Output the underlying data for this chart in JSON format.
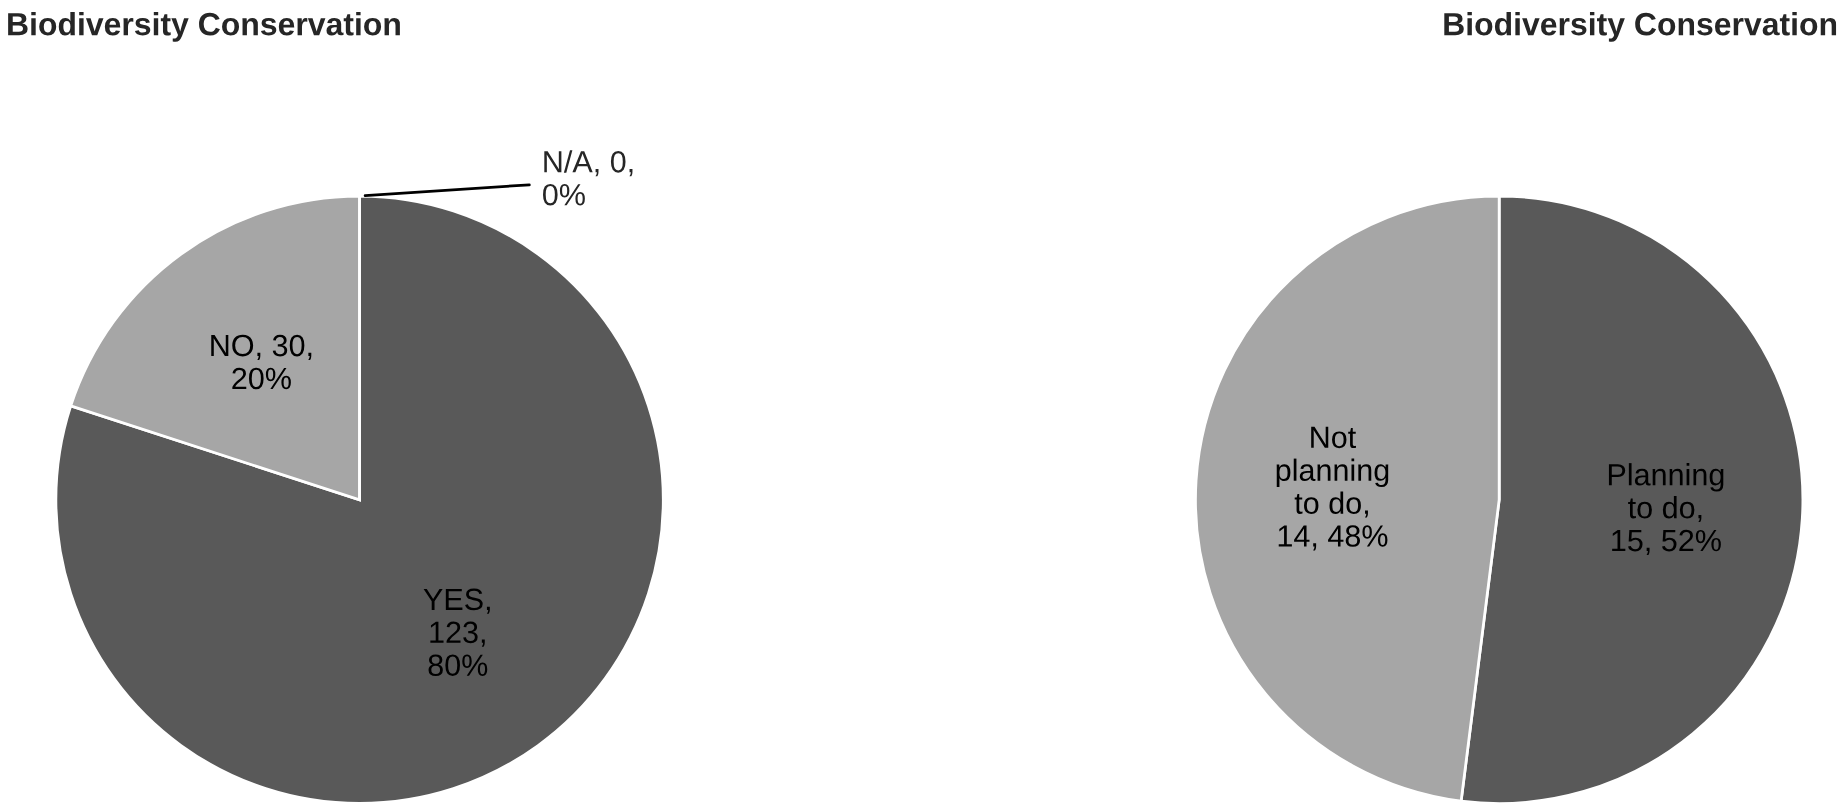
{
  "chart_data": [
    {
      "type": "pie",
      "title": "Biodiversity Conservation",
      "categories": [
        "YES, 123, 80%",
        "NO, 30, 20%",
        "N/A, 0, 0%"
      ],
      "values": [
        80,
        20,
        0
      ],
      "colors": [
        "#595959",
        "#a6a6a6",
        "#7f7f7f"
      ],
      "legend": false
    },
    {
      "type": "pie",
      "title": "Biodiversity Conservation",
      "categories": [
        "Planning to do, 15, 52%",
        "Not planning to do, 14, 48%"
      ],
      "values": [
        52,
        48
      ],
      "colors": [
        "#595959",
        "#a6a6a6"
      ],
      "legend": false
    }
  ]
}
